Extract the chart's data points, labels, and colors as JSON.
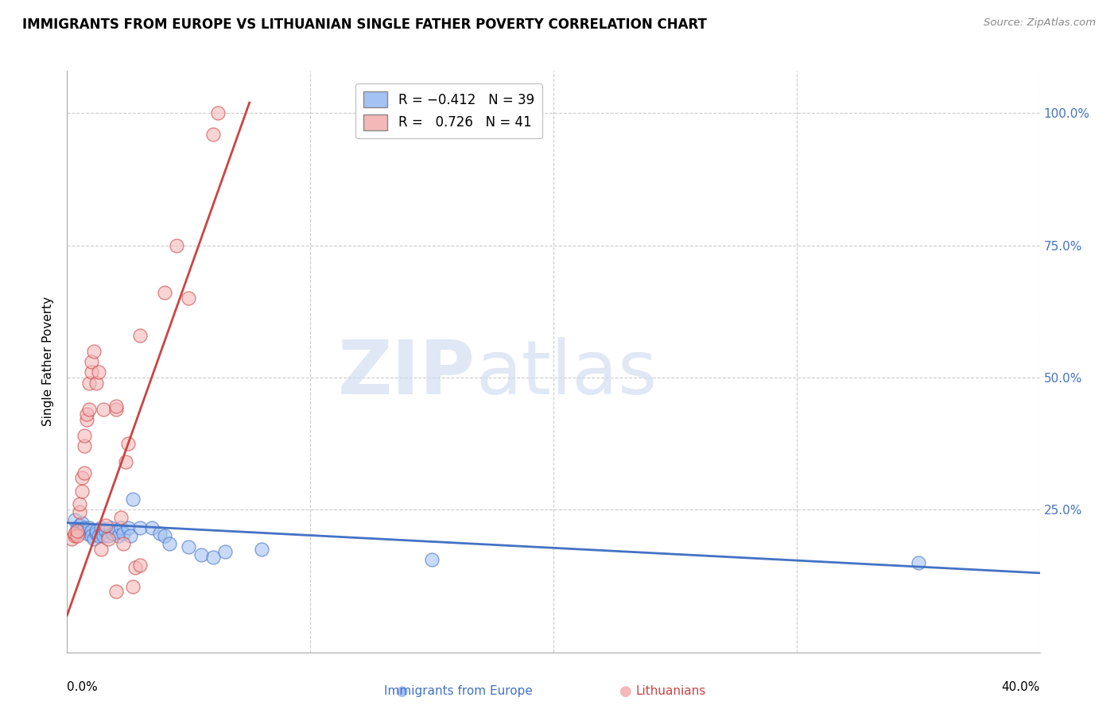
{
  "title": "IMMIGRANTS FROM EUROPE VS LITHUANIAN SINGLE FATHER POVERTY CORRELATION CHART",
  "source": "Source: ZipAtlas.com",
  "ylabel": "Single Father Poverty",
  "xlim": [
    0.0,
    0.4
  ],
  "ylim": [
    -0.02,
    1.08
  ],
  "blue_color": "#a4c2f4",
  "pink_color": "#f4b8b8",
  "blue_line_color": "#4472c4",
  "pink_line_color": "#cc4444",
  "blue_scatter": [
    [
      0.003,
      0.23
    ],
    [
      0.004,
      0.215
    ],
    [
      0.005,
      0.22
    ],
    [
      0.006,
      0.225
    ],
    [
      0.006,
      0.21
    ],
    [
      0.007,
      0.215
    ],
    [
      0.008,
      0.205
    ],
    [
      0.009,
      0.215
    ],
    [
      0.01,
      0.21
    ],
    [
      0.01,
      0.2
    ],
    [
      0.011,
      0.195
    ],
    [
      0.012,
      0.205
    ],
    [
      0.012,
      0.21
    ],
    [
      0.013,
      0.2
    ],
    [
      0.014,
      0.215
    ],
    [
      0.015,
      0.2
    ],
    [
      0.016,
      0.21
    ],
    [
      0.017,
      0.2
    ],
    [
      0.018,
      0.215
    ],
    [
      0.019,
      0.205
    ],
    [
      0.02,
      0.21
    ],
    [
      0.021,
      0.2
    ],
    [
      0.022,
      0.215
    ],
    [
      0.023,
      0.205
    ],
    [
      0.025,
      0.215
    ],
    [
      0.026,
      0.2
    ],
    [
      0.027,
      0.27
    ],
    [
      0.03,
      0.215
    ],
    [
      0.035,
      0.215
    ],
    [
      0.038,
      0.205
    ],
    [
      0.04,
      0.2
    ],
    [
      0.042,
      0.185
    ],
    [
      0.05,
      0.18
    ],
    [
      0.055,
      0.165
    ],
    [
      0.06,
      0.16
    ],
    [
      0.065,
      0.17
    ],
    [
      0.08,
      0.175
    ],
    [
      0.15,
      0.155
    ],
    [
      0.35,
      0.15
    ]
  ],
  "pink_scatter": [
    [
      0.002,
      0.195
    ],
    [
      0.003,
      0.2
    ],
    [
      0.003,
      0.205
    ],
    [
      0.004,
      0.2
    ],
    [
      0.004,
      0.21
    ],
    [
      0.005,
      0.245
    ],
    [
      0.005,
      0.26
    ],
    [
      0.006,
      0.285
    ],
    [
      0.006,
      0.31
    ],
    [
      0.007,
      0.32
    ],
    [
      0.007,
      0.37
    ],
    [
      0.007,
      0.39
    ],
    [
      0.008,
      0.42
    ],
    [
      0.008,
      0.43
    ],
    [
      0.009,
      0.44
    ],
    [
      0.009,
      0.49
    ],
    [
      0.01,
      0.51
    ],
    [
      0.01,
      0.53
    ],
    [
      0.011,
      0.55
    ],
    [
      0.012,
      0.49
    ],
    [
      0.013,
      0.51
    ],
    [
      0.014,
      0.175
    ],
    [
      0.015,
      0.44
    ],
    [
      0.016,
      0.22
    ],
    [
      0.017,
      0.195
    ],
    [
      0.02,
      0.44
    ],
    [
      0.02,
      0.445
    ],
    [
      0.022,
      0.235
    ],
    [
      0.023,
      0.185
    ],
    [
      0.024,
      0.34
    ],
    [
      0.025,
      0.375
    ],
    [
      0.027,
      0.105
    ],
    [
      0.028,
      0.14
    ],
    [
      0.03,
      0.58
    ],
    [
      0.03,
      0.145
    ],
    [
      0.04,
      0.66
    ],
    [
      0.045,
      0.75
    ],
    [
      0.05,
      0.65
    ],
    [
      0.06,
      0.96
    ],
    [
      0.062,
      1.0
    ],
    [
      0.02,
      0.095
    ]
  ],
  "blue_trend_x": [
    0.0,
    0.4
  ],
  "blue_trend_y": [
    0.225,
    0.13
  ],
  "pink_trend_x": [
    0.0,
    0.075
  ],
  "pink_trend_y": [
    0.05,
    1.02
  ]
}
